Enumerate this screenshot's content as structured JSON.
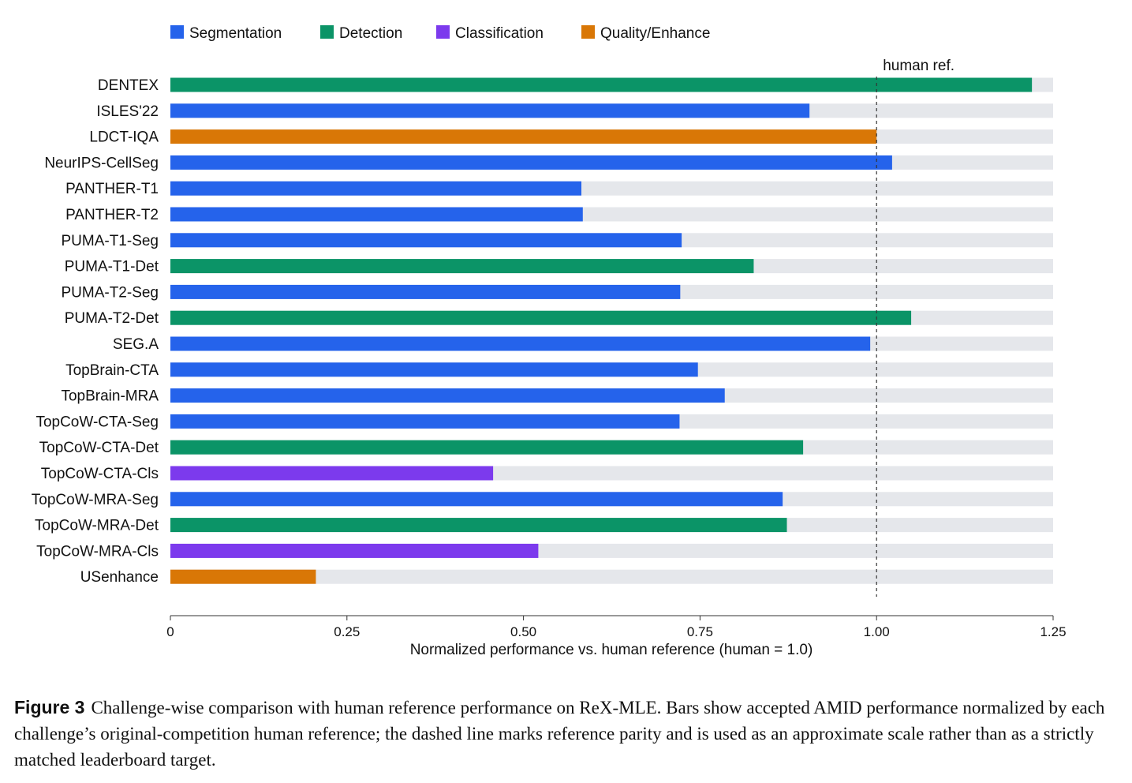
{
  "chart_data": {
    "type": "bar",
    "orientation": "horizontal",
    "xlabel": "Normalized performance vs. human reference (human = 1.0)",
    "xlim": [
      0,
      1.25
    ],
    "xticks": [
      0,
      0.25,
      0.5,
      0.75,
      1.0,
      1.25
    ],
    "xtick_labels": [
      "0",
      "0.25",
      "0.50",
      "0.75",
      "1.00",
      "1.25"
    ],
    "reference_line": {
      "value": 1.0,
      "label": "human ref.",
      "style": "dashed"
    },
    "legend_placement": "top",
    "legend": [
      {
        "key": "seg",
        "name": "Segmentation",
        "color": "#2563eb"
      },
      {
        "key": "det",
        "name": "Detection",
        "color": "#0b9467"
      },
      {
        "key": "cls",
        "name": "Classification",
        "color": "#7c3aed"
      },
      {
        "key": "qual",
        "name": "Quality/Enhance",
        "color": "#d97706"
      }
    ],
    "track_color": "#e5e7eb",
    "bars": [
      {
        "label": "DENTEX",
        "value": 1.22,
        "group": "det"
      },
      {
        "label": "ISLES'22",
        "value": 0.905,
        "group": "seg"
      },
      {
        "label": "LDCT-IQA",
        "value": 1.0,
        "group": "qual"
      },
      {
        "label": "NeurIPS-CellSeg",
        "value": 1.022,
        "group": "seg"
      },
      {
        "label": "PANTHER-T1",
        "value": 0.582,
        "group": "seg"
      },
      {
        "label": "PANTHER-T2",
        "value": 0.584,
        "group": "seg"
      },
      {
        "label": "PUMA-T1-Seg",
        "value": 0.724,
        "group": "seg"
      },
      {
        "label": "PUMA-T1-Det",
        "value": 0.826,
        "group": "det"
      },
      {
        "label": "PUMA-T2-Seg",
        "value": 0.722,
        "group": "seg"
      },
      {
        "label": "PUMA-T2-Det",
        "value": 1.049,
        "group": "det"
      },
      {
        "label": "SEG.A",
        "value": 0.991,
        "group": "seg"
      },
      {
        "label": "TopBrain-CTA",
        "value": 0.747,
        "group": "seg"
      },
      {
        "label": "TopBrain-MRA",
        "value": 0.785,
        "group": "seg"
      },
      {
        "label": "TopCoW-CTA-Seg",
        "value": 0.721,
        "group": "seg"
      },
      {
        "label": "TopCoW-CTA-Det",
        "value": 0.896,
        "group": "det"
      },
      {
        "label": "TopCoW-CTA-Cls",
        "value": 0.457,
        "group": "cls"
      },
      {
        "label": "TopCoW-MRA-Seg",
        "value": 0.867,
        "group": "seg"
      },
      {
        "label": "TopCoW-MRA-Det",
        "value": 0.873,
        "group": "det"
      },
      {
        "label": "TopCoW-MRA-Cls",
        "value": 0.521,
        "group": "cls"
      },
      {
        "label": "USenhance",
        "value": 0.206,
        "group": "qual"
      }
    ]
  },
  "caption": {
    "label": "Figure 3",
    "text": "Challenge-wise comparison with human reference performance on ReX-MLE. Bars show accepted AMID performance normalized by each challenge’s original-competition human reference; the dashed line marks reference parity and is used as an approximate scale rather than as a strictly matched leaderboard target."
  }
}
